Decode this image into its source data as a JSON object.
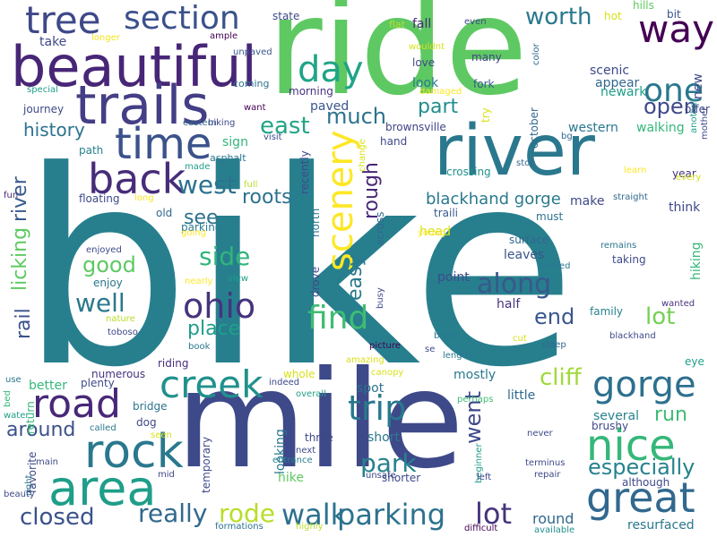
{
  "words": [
    {
      "t": "bike",
      "c": "#277f8e"
    },
    {
      "t": "mile",
      "c": "#3e4989"
    },
    {
      "t": "ride",
      "c": "#5ec962"
    },
    {
      "t": "river",
      "c": "#2a788e"
    },
    {
      "t": "beautiful",
      "c": "#482677"
    },
    {
      "t": "trails",
      "c": "#433e85"
    },
    {
      "t": "area",
      "c": "#1f9e89"
    },
    {
      "t": "rock",
      "c": "#2a788e"
    },
    {
      "t": "nice",
      "c": "#35b779"
    },
    {
      "t": "time",
      "c": "#3b528b"
    },
    {
      "t": "back",
      "c": "#472c7a"
    },
    {
      "t": "great",
      "c": "#31688e"
    },
    {
      "t": "gorge",
      "c": "#2d708e"
    },
    {
      "t": "road",
      "c": "#482878"
    },
    {
      "t": "creek",
      "c": "#21918c"
    },
    {
      "t": "tree",
      "c": "#3e4989"
    },
    {
      "t": "way",
      "c": "#440154"
    },
    {
      "t": "section",
      "c": "#3b528b"
    },
    {
      "t": "scenery",
      "c": "#fde725"
    },
    {
      "t": "day",
      "c": "#20a486"
    },
    {
      "t": "ohio",
      "c": "#46337e"
    },
    {
      "t": "find",
      "c": "#3fbc73"
    },
    {
      "t": "one",
      "c": "#2a788e"
    },
    {
      "t": "trip",
      "c": "#2a788e"
    },
    {
      "t": "walk",
      "c": "#2c728e"
    },
    {
      "t": "parking",
      "c": "#2c728e"
    },
    {
      "t": "lot",
      "c": "#46337e"
    },
    {
      "t": "closed",
      "c": "#3b528b"
    },
    {
      "t": "really",
      "c": "#31688e"
    },
    {
      "t": "rode",
      "c": "#b8de29"
    },
    {
      "t": "along",
      "c": "#38598c"
    },
    {
      "t": "park",
      "c": "#26828e"
    },
    {
      "t": "cliff",
      "c": "#a0da39"
    },
    {
      "t": "especially",
      "c": "#26828e"
    },
    {
      "t": "good",
      "c": "#5ec962"
    },
    {
      "t": "well",
      "c": "#2a788e"
    },
    {
      "t": "see",
      "c": "#2c728e"
    },
    {
      "t": "place",
      "c": "#1f9e89"
    },
    {
      "t": "side",
      "c": "#31b57b"
    },
    {
      "t": "east",
      "c": "#21a585"
    },
    {
      "t": "west",
      "c": "#2c728e"
    },
    {
      "t": "roots",
      "c": "#2c728e"
    },
    {
      "t": "open",
      "c": "#3e4989"
    },
    {
      "t": "much",
      "c": "#2c728e"
    },
    {
      "t": "part",
      "c": "#228d8d"
    },
    {
      "t": "worth",
      "c": "#2a788e"
    },
    {
      "t": "end",
      "c": "#39568c"
    },
    {
      "t": "lot",
      "c": "#75d054"
    },
    {
      "t": "run",
      "c": "#3fbc73"
    },
    {
      "t": "around",
      "c": "#3b528b"
    },
    {
      "t": "went",
      "c": "#3e4989"
    },
    {
      "t": "history",
      "c": "#2c728e"
    },
    {
      "t": "rough",
      "c": "#482878"
    },
    {
      "t": "easy",
      "c": "#2a788e"
    },
    {
      "t": "blackhand gorge",
      "c": "#2a788e"
    },
    {
      "t": "rail",
      "c": "#3b528b"
    },
    {
      "t": "licking",
      "c": "#5ec962"
    },
    {
      "t": "river",
      "c": "#38598c"
    },
    {
      "t": "round",
      "c": "#31688e"
    },
    {
      "t": "resurfaced",
      "c": "#2a788e"
    },
    {
      "t": "state",
      "c": "#3e4989"
    },
    {
      "t": "take",
      "c": "#3e4989"
    },
    {
      "t": "longer",
      "c": "#f1e51d"
    },
    {
      "t": "ample",
      "c": "#440154"
    },
    {
      "t": "unpaved",
      "c": "#3b528b"
    },
    {
      "t": "flat",
      "c": "#b8de29"
    },
    {
      "t": "even",
      "c": "#3e4989"
    },
    {
      "t": "wouldnt",
      "c": "#d8e219"
    },
    {
      "t": "hot",
      "c": "#d8e219"
    },
    {
      "t": "hills",
      "c": "#5ec962"
    },
    {
      "t": "bit",
      "c": "#3b528b"
    },
    {
      "t": "fall",
      "c": "#482878"
    },
    {
      "t": "many",
      "c": "#414487"
    },
    {
      "t": "love",
      "c": "#3e4989"
    },
    {
      "t": "look",
      "c": "#2a788e"
    },
    {
      "t": "fork",
      "c": "#38598c"
    },
    {
      "t": "scenic",
      "c": "#3e4989"
    },
    {
      "t": "newark",
      "c": "#1f9e89"
    },
    {
      "t": "appear",
      "c": "#31688e"
    },
    {
      "t": "coming",
      "c": "#2c728e"
    },
    {
      "t": "special",
      "c": "#1f9e89"
    },
    {
      "t": "journey",
      "c": "#3e4989"
    },
    {
      "t": "morning",
      "c": "#46337e"
    },
    {
      "t": "paved",
      "c": "#39568c"
    },
    {
      "t": "want",
      "c": "#440154"
    },
    {
      "t": "damaged",
      "c": "#fde725"
    },
    {
      "t": "brownsville",
      "c": "#414487"
    },
    {
      "t": "hand",
      "c": "#3e4989"
    },
    {
      "t": "western",
      "c": "#2a788e"
    },
    {
      "t": "walking",
      "c": "#35b779"
    },
    {
      "t": "bg",
      "c": "#31688e"
    },
    {
      "t": "eastern",
      "c": "#31688e"
    },
    {
      "t": "biking",
      "c": "#3e4989"
    },
    {
      "t": "sign",
      "c": "#31b57b"
    },
    {
      "t": "visit",
      "c": "#3e4989"
    },
    {
      "t": "path",
      "c": "#26828e"
    },
    {
      "t": "asphalt",
      "c": "#2a788e"
    },
    {
      "t": "made",
      "c": "#1f9e89"
    },
    {
      "t": "full",
      "c": "#b8de29"
    },
    {
      "t": "fun",
      "c": "#482878"
    },
    {
      "t": "floating",
      "c": "#3e4989"
    },
    {
      "t": "long",
      "c": "#fde725"
    },
    {
      "t": "old",
      "c": "#31688e"
    },
    {
      "t": "parking",
      "c": "#2a788e"
    },
    {
      "t": "going",
      "c": "#fde725"
    },
    {
      "t": "traili",
      "c": "#38598c"
    },
    {
      "t": "head",
      "c": "#d8e219"
    },
    {
      "t": "young",
      "c": "#fde725"
    },
    {
      "t": "must",
      "c": "#2c728e"
    },
    {
      "t": "make",
      "c": "#3e4989"
    },
    {
      "t": "straight",
      "c": "#31688e"
    },
    {
      "t": "think",
      "c": "#3e4989"
    },
    {
      "t": "stop",
      "c": "#31688e"
    },
    {
      "t": "learn",
      "c": "#fde725"
    },
    {
      "t": "year",
      "c": "#46337e"
    },
    {
      "t": "every",
      "c": "#d8e219"
    },
    {
      "t": "crossing",
      "c": "#21918c"
    },
    {
      "t": "surface",
      "c": "#31688e"
    },
    {
      "t": "leaves",
      "c": "#39568c"
    },
    {
      "t": "parked",
      "c": "#2a788e"
    },
    {
      "t": "remains",
      "c": "#2a788e"
    },
    {
      "t": "taking",
      "c": "#3e4989"
    },
    {
      "t": "enjoyed",
      "c": "#3e4989"
    },
    {
      "t": "enjoy",
      "c": "#2a788e"
    },
    {
      "t": "view",
      "c": "#1f9e89"
    },
    {
      "t": "nearly",
      "c": "#fde725"
    },
    {
      "t": "nature",
      "c": "#b8de29"
    },
    {
      "t": "toboso",
      "c": "#3e4989"
    },
    {
      "t": "half",
      "c": "#46337e"
    },
    {
      "t": "family",
      "c": "#26828e"
    },
    {
      "t": "wanted",
      "c": "#46337e"
    },
    {
      "t": "blackhand",
      "c": "#3e4989"
    },
    {
      "t": "book",
      "c": "#2a788e"
    },
    {
      "t": "picture",
      "c": "#440154"
    },
    {
      "t": "black",
      "c": "#2a788e"
    },
    {
      "t": "cut",
      "c": "#d8e219"
    },
    {
      "t": "steep",
      "c": "#31688e"
    },
    {
      "t": "riding",
      "c": "#472d7b"
    },
    {
      "t": "amazing",
      "c": "#d8e219"
    },
    {
      "t": "se",
      "c": "#3e4989"
    },
    {
      "t": "length",
      "c": "#2a788e"
    },
    {
      "t": "mostly",
      "c": "#2a788e"
    },
    {
      "t": "numerous",
      "c": "#46337e"
    },
    {
      "t": "whole",
      "c": "#d8e219"
    },
    {
      "t": "canopy",
      "c": "#d8e219"
    },
    {
      "t": "use",
      "c": "#2a788e"
    },
    {
      "t": "plenty",
      "c": "#3e4989"
    },
    {
      "t": "better",
      "c": "#35b779"
    },
    {
      "t": "indeed",
      "c": "#3e4989"
    },
    {
      "t": "overall",
      "c": "#1f9e89"
    },
    {
      "t": "spot",
      "c": "#2c728e"
    },
    {
      "t": "little",
      "c": "#31688e"
    },
    {
      "t": "perhaps",
      "c": "#3fbc73"
    },
    {
      "t": "several",
      "c": "#26828e"
    },
    {
      "t": "bed",
      "c": "#35b779"
    },
    {
      "t": "water",
      "c": "#1f9e89"
    },
    {
      "t": "bridge",
      "c": "#2c728e"
    },
    {
      "t": "dog",
      "c": "#3e4989"
    },
    {
      "t": "called",
      "c": "#2a788e"
    },
    {
      "t": "seen",
      "c": "#d8e219"
    },
    {
      "t": "short",
      "c": "#2a788e"
    },
    {
      "t": "three",
      "c": "#3e4989"
    },
    {
      "t": "brushy",
      "c": "#3e4989"
    },
    {
      "t": "never",
      "c": "#3e4989"
    },
    {
      "t": "main",
      "c": "#3e4989"
    },
    {
      "t": "mid",
      "c": "#3e4989"
    },
    {
      "t": "next",
      "c": "#3e4989"
    },
    {
      "t": "entrance",
      "c": "#26828e"
    },
    {
      "t": "unsafe",
      "c": "#3e4989"
    },
    {
      "t": "shorter",
      "c": "#3e4989"
    },
    {
      "t": "beginner",
      "c": "#1f9e89"
    },
    {
      "t": "left",
      "c": "#3e4989"
    },
    {
      "t": "terminus",
      "c": "#3e4989"
    },
    {
      "t": "repair",
      "c": "#3e4989"
    },
    {
      "t": "although",
      "c": "#3e4989"
    },
    {
      "t": "hike",
      "c": "#5ec962"
    },
    {
      "t": "beauty",
      "c": "#3e4989"
    },
    {
      "t": "formations",
      "c": "#2c728e"
    },
    {
      "t": "highly",
      "c": "#b8de29"
    },
    {
      "t": "difficult",
      "c": "#440154"
    },
    {
      "t": "available",
      "c": "#21918c"
    },
    {
      "t": "right",
      "c": "#2a788e"
    },
    {
      "t": "favorite",
      "c": "#3e4989"
    },
    {
      "t": "return",
      "c": "#35b779"
    },
    {
      "t": "temporary",
      "c": "#3e4989"
    },
    {
      "t": "looking",
      "c": "#2a788e"
    },
    {
      "t": "across",
      "c": "#31688e"
    },
    {
      "t": "north",
      "c": "#2a788e"
    },
    {
      "t": "drove",
      "c": "#3e4989"
    },
    {
      "t": "recently",
      "c": "#3e4989"
    },
    {
      "t": "busy",
      "c": "#3e4989"
    },
    {
      "t": "october",
      "c": "#31688e"
    },
    {
      "t": "color",
      "c": "#31688e"
    },
    {
      "t": "try",
      "c": "#d8e219"
    },
    {
      "t": "change",
      "c": "#d8e219"
    },
    {
      "t": "point",
      "c": "#3e4989"
    },
    {
      "t": "hiking",
      "c": "#35b779"
    },
    {
      "t": "eye",
      "c": "#1f9e89"
    },
    {
      "t": "new",
      "c": "#3e4989"
    },
    {
      "t": "another",
      "c": "#1f9e89"
    },
    {
      "t": "offer",
      "c": "#3e4989"
    },
    {
      "t": "mother",
      "c": "#3e4989"
    }
  ]
}
